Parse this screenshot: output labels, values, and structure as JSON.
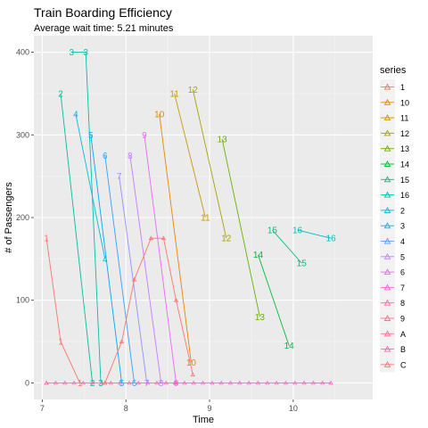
{
  "chart_data": {
    "type": "line",
    "title": "Train Boarding Efficiency",
    "subtitle": "Average wait time: 5.21 minutes",
    "xlabel": "Time",
    "ylabel": "# of Passengers",
    "xlim": [
      6.9,
      10.95
    ],
    "ylim": [
      -20,
      420
    ],
    "xticks": [
      7,
      8,
      9,
      10
    ],
    "yticks": [
      0,
      100,
      200,
      300,
      400
    ],
    "grid": true,
    "legend": {
      "title": "series",
      "position": "right",
      "entries": [
        {
          "name": "1",
          "color": "#F8766D"
        },
        {
          "name": "10",
          "color": "#E58700"
        },
        {
          "name": "11",
          "color": "#C99800"
        },
        {
          "name": "12",
          "color": "#A3A500"
        },
        {
          "name": "13",
          "color": "#6BB100"
        },
        {
          "name": "14",
          "color": "#00BA38"
        },
        {
          "name": "15",
          "color": "#00BF7D"
        },
        {
          "name": "16",
          "color": "#00C0AF"
        },
        {
          "name": "2",
          "color": "#00BCD8"
        },
        {
          "name": "3",
          "color": "#00B0F6"
        },
        {
          "name": "4",
          "color": "#619CFF"
        },
        {
          "name": "5",
          "color": "#B983FF"
        },
        {
          "name": "6",
          "color": "#E76BF3"
        },
        {
          "name": "7",
          "color": "#FD61D1"
        },
        {
          "name": "8",
          "color": "#FF67A4"
        },
        {
          "name": "9",
          "color": "#FF6C90"
        },
        {
          "name": "A",
          "color": "#FF6C90"
        },
        {
          "name": "B",
          "color": "#FF65AE"
        },
        {
          "name": "C",
          "color": "#FC717F"
        }
      ]
    },
    "series": [
      {
        "name": "1",
        "color": "#F8766D",
        "label": "1",
        "points": [
          [
            7.05,
            175
          ],
          [
            7.22,
            50
          ],
          [
            7.45,
            0
          ]
        ]
      },
      {
        "name": "2",
        "color": "#00BFA0",
        "label": "2",
        "points": [
          [
            7.22,
            350
          ],
          [
            7.6,
            0
          ]
        ]
      },
      {
        "name": "3",
        "color": "#00C1AA",
        "label": "3",
        "points": [
          [
            7.35,
            400
          ],
          [
            7.52,
            400
          ],
          [
            7.7,
            0
          ]
        ]
      },
      {
        "name": "4",
        "color": "#00BCD8",
        "label": "4",
        "points": [
          [
            7.4,
            325
          ],
          [
            7.75,
            150
          ]
        ]
      },
      {
        "name": "5",
        "color": "#00A9FF",
        "label": "5",
        "points": [
          [
            7.58,
            300
          ],
          [
            7.95,
            0
          ]
        ]
      },
      {
        "name": "6",
        "color": "#35A2FF",
        "label": "6",
        "points": [
          [
            7.75,
            275
          ],
          [
            8.1,
            0
          ]
        ]
      },
      {
        "name": "7",
        "color": "#9590FF",
        "label": "7",
        "points": [
          [
            7.92,
            250
          ],
          [
            8.25,
            0
          ]
        ]
      },
      {
        "name": "8",
        "color": "#C77CFF",
        "label": "8",
        "points": [
          [
            8.05,
            275
          ],
          [
            8.42,
            0
          ]
        ]
      },
      {
        "name": "9",
        "color": "#E76BF3",
        "label": "9",
        "points": [
          [
            8.22,
            300
          ],
          [
            8.6,
            0
          ]
        ]
      },
      {
        "name": "10",
        "color": "#E58700",
        "label": "10",
        "points": [
          [
            8.4,
            325
          ],
          [
            8.78,
            25
          ]
        ]
      },
      {
        "name": "11",
        "color": "#C99800",
        "label": "11",
        "points": [
          [
            8.58,
            350
          ],
          [
            8.95,
            200
          ]
        ]
      },
      {
        "name": "12",
        "color": "#A3A500",
        "label": "12",
        "points": [
          [
            8.8,
            355
          ],
          [
            9.2,
            175
          ]
        ]
      },
      {
        "name": "13",
        "color": "#6BB100",
        "label": "13",
        "points": [
          [
            9.15,
            295
          ],
          [
            9.6,
            80
          ]
        ]
      },
      {
        "name": "14",
        "color": "#00BA38",
        "label": "14",
        "points": [
          [
            9.58,
            155
          ],
          [
            9.95,
            45
          ]
        ]
      },
      {
        "name": "15",
        "color": "#00BF7D",
        "label": "15",
        "points": [
          [
            9.75,
            185
          ],
          [
            10.1,
            145
          ]
        ]
      },
      {
        "name": "16",
        "color": "#00BFC4",
        "label": "16",
        "points": [
          [
            10.05,
            185
          ],
          [
            10.45,
            175
          ]
        ]
      },
      {
        "name": "A",
        "color": "#FF6C90",
        "label": "",
        "points": [
          [
            7.05,
            0
          ],
          [
            8.6,
            0
          ]
        ]
      },
      {
        "name": "B",
        "color": "#FF61C3",
        "label": "",
        "points": [
          [
            8.6,
            0
          ],
          [
            10.45,
            0
          ]
        ]
      },
      {
        "name": "C",
        "color": "#F8766D",
        "label": "",
        "points": [
          [
            7.75,
            0
          ],
          [
            7.95,
            50
          ],
          [
            8.1,
            125
          ],
          [
            8.3,
            175
          ],
          [
            8.45,
            175
          ],
          [
            8.6,
            100
          ],
          [
            8.8,
            10
          ]
        ]
      }
    ]
  }
}
